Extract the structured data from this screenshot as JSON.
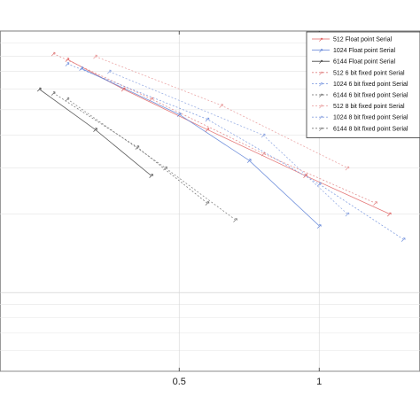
{
  "chart_data": {
    "type": "line",
    "title": "",
    "xlabel": "",
    "ylabel": "",
    "yscale": "log",
    "grid": true,
    "legend_position": "top-right",
    "x_ticks": [
      0.5,
      1
    ],
    "x_tick_labels": [
      "0.5",
      "1"
    ],
    "series": [
      {
        "name": "512   Float point   Serial",
        "color": "#e06060",
        "marker": "↗",
        "dashed": false,
        "points": [
          [
            0.1,
            0.78
          ],
          [
            0.3,
            0.6
          ],
          [
            0.6,
            0.42
          ],
          [
            0.95,
            0.28
          ],
          [
            1.25,
            0.2
          ]
        ]
      },
      {
        "name": "1024   Float point   Serial",
        "color": "#5b7fd6",
        "marker": "↗",
        "dashed": false,
        "points": [
          [
            0.15,
            0.72
          ],
          [
            0.5,
            0.48
          ],
          [
            0.75,
            0.32
          ],
          [
            1.0,
            0.18
          ]
        ]
      },
      {
        "name": "6144   Float point   Serial",
        "color": "#444444",
        "marker": "↗",
        "dashed": false,
        "points": [
          [
            0.0,
            0.6
          ],
          [
            0.2,
            0.42
          ],
          [
            0.4,
            0.28
          ]
        ]
      },
      {
        "name": "512   6 bit fixed point   Serial",
        "color": "#e08080",
        "marker": "↗",
        "dashed": true,
        "points": [
          [
            0.05,
            0.82
          ],
          [
            0.4,
            0.55
          ],
          [
            0.8,
            0.34
          ],
          [
            1.2,
            0.22
          ]
        ]
      },
      {
        "name": "1024   6 bit fixed point   Serial",
        "color": "#7090dd",
        "marker": "↗",
        "dashed": true,
        "points": [
          [
            0.1,
            0.75
          ],
          [
            0.6,
            0.46
          ],
          [
            1.0,
            0.26
          ],
          [
            1.3,
            0.16
          ]
        ]
      },
      {
        "name": "6144   6 bit fixed point   Serial",
        "color": "#666666",
        "marker": "↗",
        "dashed": true,
        "points": [
          [
            0.05,
            0.58
          ],
          [
            0.35,
            0.36
          ],
          [
            0.6,
            0.22
          ]
        ]
      },
      {
        "name": "512   8 bit fixed point   Serial",
        "color": "#e89898",
        "marker": "↗",
        "dashed": true,
        "points": [
          [
            0.2,
            0.8
          ],
          [
            0.65,
            0.52
          ],
          [
            1.1,
            0.3
          ]
        ]
      },
      {
        "name": "1024   8 bit fixed point   Serial",
        "color": "#8aa2e0",
        "marker": "↗",
        "dashed": true,
        "points": [
          [
            0.25,
            0.7
          ],
          [
            0.8,
            0.4
          ],
          [
            1.1,
            0.2
          ]
        ]
      },
      {
        "name": "6144   8 bit fixed point   Serial",
        "color": "#777777",
        "marker": "↗",
        "dashed": true,
        "points": [
          [
            0.1,
            0.55
          ],
          [
            0.45,
            0.3
          ],
          [
            0.7,
            0.19
          ]
        ]
      }
    ]
  }
}
